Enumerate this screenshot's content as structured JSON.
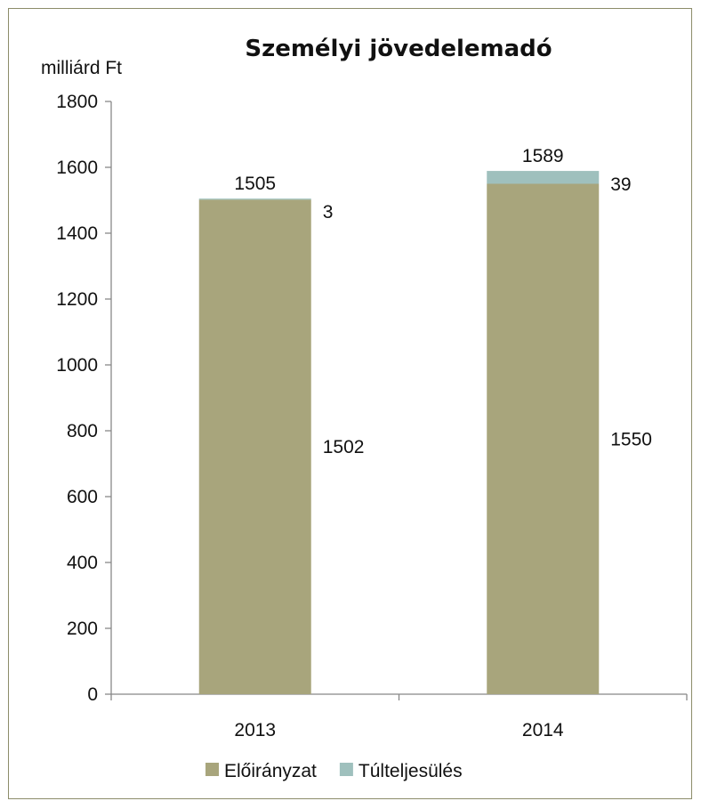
{
  "chart_data": {
    "type": "bar",
    "stacked": true,
    "title": "Személyi jövedelemadó",
    "ylabel": "milliárd Ft",
    "xlabel": "",
    "categories": [
      "2013",
      "2014"
    ],
    "ylim": [
      0,
      1800
    ],
    "yticks": [
      0,
      200,
      400,
      600,
      800,
      1000,
      1200,
      1400,
      1600,
      1800
    ],
    "series": [
      {
        "name": "Előirányzat",
        "values": [
          1502,
          1550
        ],
        "color": "#a8a57c"
      },
      {
        "name": "Túlteljesülés",
        "values": [
          3,
          39
        ],
        "color": "#9fc0bd"
      }
    ],
    "totals": [
      1505,
      1589
    ],
    "legend_position": "bottom",
    "grid": false
  }
}
